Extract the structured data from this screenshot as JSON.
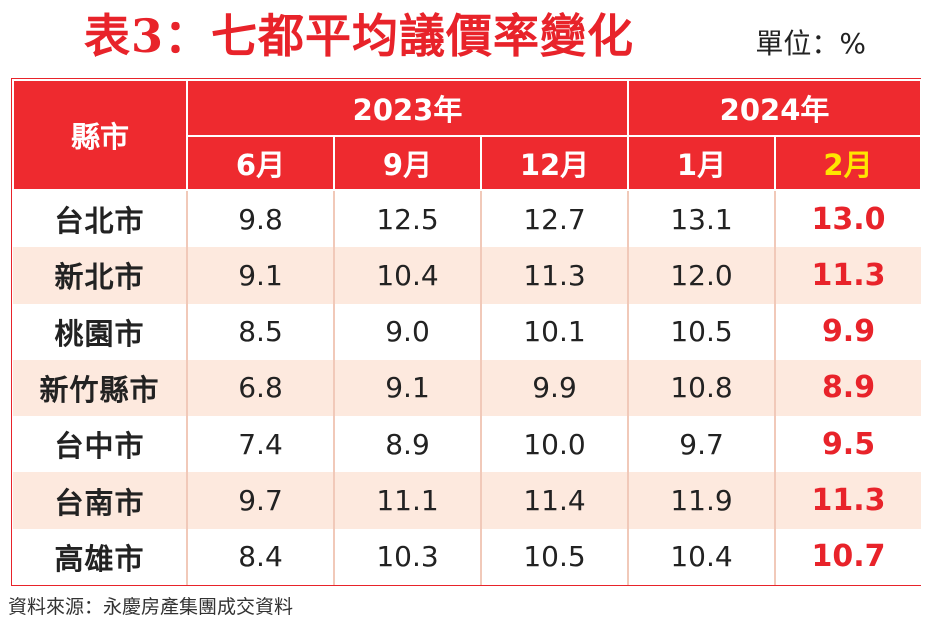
{
  "title": "表3：七都平均議價率變化",
  "unit": "單位：%",
  "header": {
    "city_label": "縣市",
    "year_groups": [
      "2023年",
      "2024年"
    ],
    "months": [
      "6月",
      "9月",
      "12月",
      "1月",
      "2月"
    ]
  },
  "rows": [
    {
      "city": "台北市",
      "values": [
        "9.8",
        "12.5",
        "12.7",
        "13.1",
        "13.0"
      ]
    },
    {
      "city": "新北市",
      "values": [
        "9.1",
        "10.4",
        "11.3",
        "12.0",
        "11.3"
      ]
    },
    {
      "city": "桃園市",
      "values": [
        "8.5",
        "9.0",
        "10.1",
        "10.5",
        "9.9"
      ]
    },
    {
      "city": "新竹縣市",
      "values": [
        "6.8",
        "9.1",
        "9.9",
        "10.8",
        "8.9"
      ]
    },
    {
      "city": "台中市",
      "values": [
        "7.4",
        "8.9",
        "10.0",
        "9.7",
        "9.5"
      ]
    },
    {
      "city": "台南市",
      "values": [
        "9.7",
        "11.1",
        "11.4",
        "11.9",
        "11.3"
      ]
    },
    {
      "city": "高雄市",
      "values": [
        "8.4",
        "10.3",
        "10.5",
        "10.4",
        "10.7"
      ]
    }
  ],
  "source": "資料來源：永慶房產集團成交資料",
  "colors": {
    "accent": "#e8232a",
    "header_bg": "#ee2a2f",
    "highlight": "#ffe600",
    "stripe": "#fde9de"
  }
}
